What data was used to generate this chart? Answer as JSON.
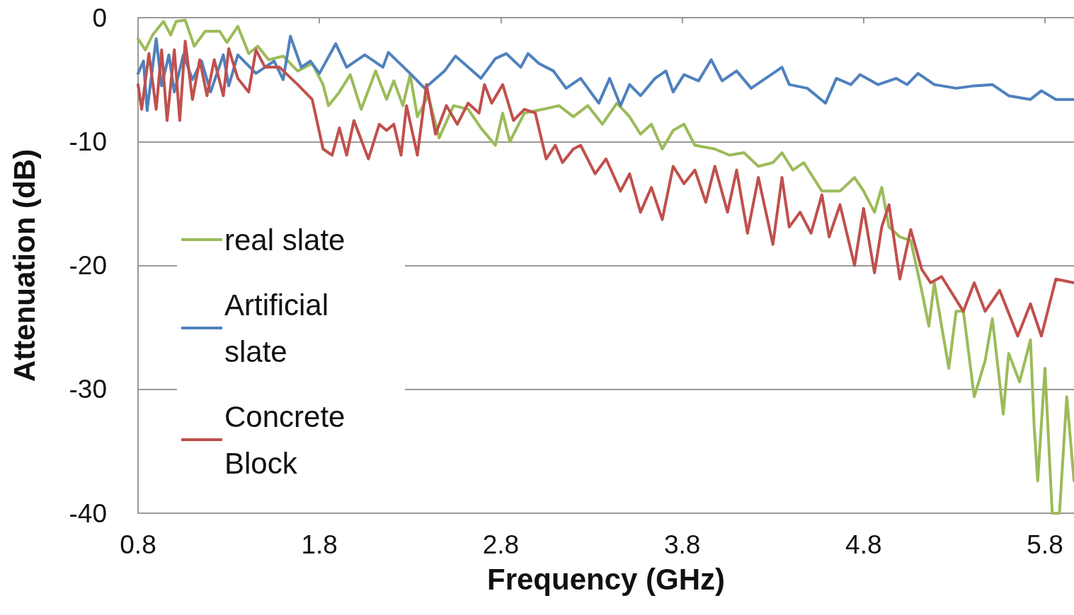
{
  "chart_data": {
    "type": "line",
    "xlabel": "Frequency (GHz)",
    "ylabel": "Attenuation (dB)",
    "xlim": [
      0.8,
      5.96
    ],
    "xticks": [
      0.8,
      1.8,
      2.8,
      3.8,
      4.8,
      5.8
    ],
    "ylim": [
      -40,
      0
    ],
    "yticks": [
      -40,
      -30,
      -20,
      -10,
      0
    ],
    "grid": "y",
    "legend": "left",
    "marker": "none",
    "line_style": "solid",
    "series": [
      {
        "name": "real slate",
        "color": "#9bbb59",
        "x": [
          0.8,
          0.84,
          0.88,
          0.94,
          0.98,
          1.01,
          1.06,
          1.11,
          1.17,
          1.25,
          1.29,
          1.35,
          1.41,
          1.46,
          1.52,
          1.6,
          1.68,
          1.76,
          1.82,
          1.85,
          1.91,
          1.97,
          2.03,
          2.11,
          2.17,
          2.21,
          2.26,
          2.3,
          2.34,
          2.4,
          2.46,
          2.54,
          2.62,
          2.69,
          2.77,
          2.81,
          2.85,
          2.93,
          3.03,
          3.12,
          3.2,
          3.28,
          3.36,
          3.44,
          3.51,
          3.57,
          3.63,
          3.69,
          3.75,
          3.81,
          3.87,
          3.98,
          4.06,
          4.14,
          4.22,
          4.3,
          4.35,
          4.41,
          4.47,
          4.57,
          4.67,
          4.75,
          4.8,
          4.86,
          4.9,
          4.94,
          5.0,
          5.06,
          5.12,
          5.16,
          5.19,
          5.23,
          5.27,
          5.31,
          5.35,
          5.41,
          5.47,
          5.51,
          5.57,
          5.6,
          5.66,
          5.72,
          5.74,
          5.76,
          5.8,
          5.84,
          5.88,
          5.92,
          5.96
        ],
        "values": [
          -1.7,
          -2.6,
          -1.4,
          -0.3,
          -1.4,
          -0.3,
          -0.2,
          -2.3,
          -1.1,
          -1.1,
          -2,
          -0.7,
          -2.9,
          -2.3,
          -3.4,
          -3.1,
          -4.3,
          -3.7,
          -5.4,
          -7.1,
          -6,
          -4.6,
          -7.4,
          -4.3,
          -6.6,
          -5.1,
          -7.1,
          -4.6,
          -8,
          -6.3,
          -9.7,
          -7.1,
          -7.4,
          -8.9,
          -10.3,
          -7.7,
          -10,
          -7.7,
          -7.4,
          -7.1,
          -8,
          -7.1,
          -8.6,
          -6.9,
          -8,
          -9.4,
          -8.6,
          -10.6,
          -9.1,
          -8.6,
          -10.3,
          -10.6,
          -11.1,
          -10.9,
          -12,
          -11.7,
          -10.9,
          -12.3,
          -11.7,
          -14,
          -14,
          -12.9,
          -14,
          -15.7,
          -13.7,
          -16.9,
          -17.7,
          -18,
          -22,
          -24.9,
          -21.4,
          -24.9,
          -28.3,
          -23.7,
          -23.7,
          -30.6,
          -27.7,
          -24.3,
          -32,
          -27.1,
          -29.4,
          -26,
          -32.9,
          -37.4,
          -28.3,
          -40,
          -40,
          -30.6,
          -37.4
        ]
      },
      {
        "name": "Artificial slate",
        "color": "#4f81bd",
        "x": [
          0.8,
          0.83,
          0.85,
          0.88,
          0.9,
          0.93,
          0.97,
          1.0,
          1.05,
          1.1,
          1.15,
          1.2,
          1.27,
          1.3,
          1.35,
          1.45,
          1.55,
          1.6,
          1.64,
          1.7,
          1.75,
          1.8,
          1.89,
          1.95,
          2.05,
          2.15,
          2.18,
          2.3,
          2.38,
          2.49,
          2.55,
          2.62,
          2.69,
          2.77,
          2.83,
          2.91,
          2.95,
          3.01,
          3.09,
          3.16,
          3.24,
          3.34,
          3.4,
          3.46,
          3.51,
          3.57,
          3.65,
          3.71,
          3.75,
          3.81,
          3.89,
          3.96,
          4.02,
          4.1,
          4.18,
          4.26,
          4.35,
          4.39,
          4.49,
          4.59,
          4.65,
          4.73,
          4.78,
          4.88,
          4.98,
          5.04,
          5.1,
          5.19,
          5.31,
          5.41,
          5.51,
          5.6,
          5.72,
          5.78,
          5.86,
          5.96
        ],
        "values": [
          -4.5,
          -3.5,
          -7.5,
          -4,
          -1.7,
          -5.5,
          -3,
          -6,
          -3,
          -5,
          -3.5,
          -6,
          -3,
          -5.5,
          -3,
          -4.5,
          -3.5,
          -5,
          -1.5,
          -4,
          -3.5,
          -4.5,
          -2.1,
          -4,
          -3,
          -4,
          -2.8,
          -4.5,
          -5.7,
          -4.3,
          -3.1,
          -4,
          -4.9,
          -3.3,
          -2.9,
          -4,
          -2.9,
          -3.7,
          -4.3,
          -5.7,
          -4.9,
          -6.9,
          -4.9,
          -7.1,
          -5.4,
          -6.3,
          -4.9,
          -4.3,
          -6,
          -4.6,
          -5.1,
          -3.4,
          -5.1,
          -4.3,
          -5.7,
          -4.9,
          -4,
          -5.4,
          -5.7,
          -6.9,
          -4.9,
          -5.4,
          -4.6,
          -5.4,
          -4.9,
          -5.4,
          -4.5,
          -5.4,
          -5.7,
          -5.5,
          -5.4,
          -6.3,
          -6.6,
          -5.9,
          -6.6,
          -6.6
        ]
      },
      {
        "name": "Concrete Block",
        "color": "#c0504d",
        "x": [
          0.8,
          0.82,
          0.86,
          0.9,
          0.93,
          0.96,
          1.0,
          1.03,
          1.06,
          1.1,
          1.14,
          1.18,
          1.22,
          1.27,
          1.3,
          1.35,
          1.41,
          1.45,
          1.5,
          1.58,
          1.68,
          1.76,
          1.82,
          1.87,
          1.91,
          1.95,
          1.99,
          2.07,
          2.13,
          2.17,
          2.21,
          2.25,
          2.28,
          2.34,
          2.39,
          2.44,
          2.5,
          2.56,
          2.62,
          2.68,
          2.71,
          2.75,
          2.81,
          2.87,
          2.93,
          2.99,
          3.05,
          3.1,
          3.14,
          3.2,
          3.24,
          3.32,
          3.38,
          3.46,
          3.51,
          3.57,
          3.63,
          3.69,
          3.75,
          3.81,
          3.87,
          3.93,
          3.98,
          4.05,
          4.1,
          4.16,
          4.22,
          4.3,
          4.35,
          4.39,
          4.45,
          4.51,
          4.57,
          4.61,
          4.67,
          4.75,
          4.8,
          4.86,
          4.9,
          4.94,
          5.0,
          5.06,
          5.12,
          5.17,
          5.23,
          5.35,
          5.41,
          5.47,
          5.55,
          5.65,
          5.72,
          5.78,
          5.86,
          5.96
        ],
        "values": [
          -5.4,
          -7.4,
          -2.9,
          -7.4,
          -2.6,
          -8.3,
          -2.6,
          -8.3,
          -1.9,
          -6.6,
          -3.4,
          -6.3,
          -3.4,
          -6.3,
          -2.5,
          -4.9,
          -6,
          -2.6,
          -4,
          -4,
          -5.4,
          -6.6,
          -10.6,
          -11.1,
          -8.9,
          -11.1,
          -8.3,
          -11.4,
          -8.6,
          -9.1,
          -8.6,
          -11.1,
          -7.1,
          -11.1,
          -5.4,
          -9.4,
          -7.1,
          -8.6,
          -6.9,
          -7.7,
          -5.4,
          -6.9,
          -5.4,
          -8.3,
          -7.4,
          -7.7,
          -11.4,
          -10.3,
          -11.7,
          -10.6,
          -10.3,
          -12.6,
          -11.4,
          -14,
          -12.6,
          -15.7,
          -13.7,
          -16.3,
          -12,
          -13.4,
          -12.3,
          -14.9,
          -12,
          -15.7,
          -12.3,
          -17.4,
          -12.9,
          -18.3,
          -12.9,
          -16.9,
          -15.7,
          -17.4,
          -14.3,
          -17.7,
          -15.1,
          -20,
          -15.4,
          -20.6,
          -16.9,
          -15.1,
          -21.1,
          -17.1,
          -20.3,
          -21.4,
          -20.9,
          -23.7,
          -21.4,
          -23.7,
          -22,
          -25.7,
          -23.1,
          -25.7,
          -21.1,
          -21.4
        ]
      }
    ]
  }
}
